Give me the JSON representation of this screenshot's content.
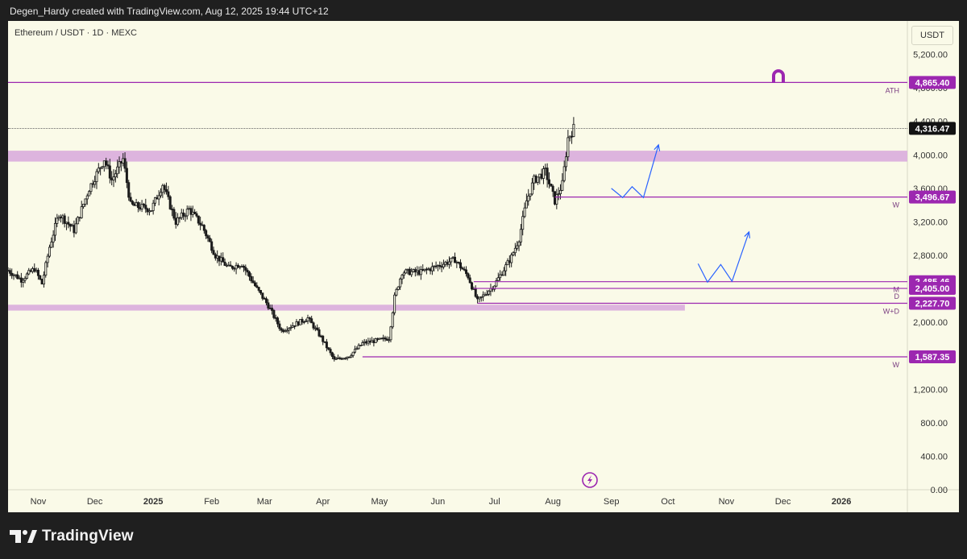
{
  "header": {
    "creator": "Degen_Hardy created with TradingView.com, Aug 12, 2025 19:44 UTC+12"
  },
  "chart_header": {
    "symbol": "Ethereum / USDT · 1D · MEXC",
    "currency": "USDT"
  },
  "footer": {
    "brand": "TradingView"
  },
  "colors": {
    "background": "#fafae8",
    "candle": "#1a1a1a",
    "level_line": "#9c27b0",
    "level_label_bg": "#9c27b0",
    "zone": "#ddb4de",
    "projection": "#2962ff",
    "price_label_bg": "#131313"
  },
  "icons": [
    "magnet-icon",
    "lightning-icon"
  ],
  "chart_data": {
    "type": "candlestick",
    "y_scale": "linear",
    "y_range": [
      0,
      5600
    ],
    "x_range": [
      "2024-10-16",
      "2026-02-05"
    ],
    "y_ticks": [
      "0.00",
      "400.00",
      "800.00",
      "1,200.00",
      "2,000.00",
      "2,400.00",
      "2,800.00",
      "3,200.00",
      "3,600.00",
      "4,000.00",
      "4,400.00",
      "4,800.00",
      "5,200.00"
    ],
    "x_ticks": [
      {
        "label": "Nov",
        "date": "2024-11-01"
      },
      {
        "label": "Dec",
        "date": "2024-12-01"
      },
      {
        "label": "2025",
        "date": "2025-01-01",
        "bold": true
      },
      {
        "label": "Feb",
        "date": "2025-02-01"
      },
      {
        "label": "Mar",
        "date": "2025-03-01"
      },
      {
        "label": "Apr",
        "date": "2025-04-01"
      },
      {
        "label": "May",
        "date": "2025-05-01"
      },
      {
        "label": "Jun",
        "date": "2025-06-01"
      },
      {
        "label": "Jul",
        "date": "2025-07-01"
      },
      {
        "label": "Aug",
        "date": "2025-08-01"
      },
      {
        "label": "Sep",
        "date": "2025-09-01"
      },
      {
        "label": "Oct",
        "date": "2025-10-01"
      },
      {
        "label": "Nov",
        "date": "2025-11-01"
      },
      {
        "label": "Dec",
        "date": "2025-12-01"
      },
      {
        "label": "2026",
        "date": "2026-01-01",
        "bold": true
      }
    ],
    "price_keypoints": [
      [
        "2024-10-16",
        2620
      ],
      [
        "2024-10-23",
        2510
      ],
      [
        "2024-10-30",
        2640
      ],
      [
        "2024-11-03",
        2460
      ],
      [
        "2024-11-07",
        2900
      ],
      [
        "2024-11-12",
        3300
      ],
      [
        "2024-11-20",
        3100
      ],
      [
        "2024-11-28",
        3600
      ],
      [
        "2024-12-06",
        3950
      ],
      [
        "2024-12-10",
        3700
      ],
      [
        "2024-12-16",
        3950
      ],
      [
        "2024-12-20",
        3400
      ],
      [
        "2024-12-31",
        3350
      ],
      [
        "2025-01-06",
        3650
      ],
      [
        "2025-01-13",
        3200
      ],
      [
        "2025-01-20",
        3350
      ],
      [
        "2025-01-27",
        3150
      ],
      [
        "2025-02-03",
        2800
      ],
      [
        "2025-02-10",
        2650
      ],
      [
        "2025-02-17",
        2700
      ],
      [
        "2025-02-25",
        2400
      ],
      [
        "2025-03-03",
        2200
      ],
      [
        "2025-03-10",
        1900
      ],
      [
        "2025-03-24",
        2050
      ],
      [
        "2025-03-31",
        1820
      ],
      [
        "2025-04-07",
        1550
      ],
      [
        "2025-04-15",
        1600
      ],
      [
        "2025-04-22",
        1750
      ],
      [
        "2025-05-06",
        1810
      ],
      [
        "2025-05-09",
        2300
      ],
      [
        "2025-05-13",
        2600
      ],
      [
        "2025-05-23",
        2600
      ],
      [
        "2025-06-10",
        2750
      ],
      [
        "2025-06-17",
        2550
      ],
      [
        "2025-06-22",
        2250
      ],
      [
        "2025-07-01",
        2450
      ],
      [
        "2025-07-10",
        2780
      ],
      [
        "2025-07-14",
        3000
      ],
      [
        "2025-07-18",
        3450
      ],
      [
        "2025-07-22",
        3700
      ],
      [
        "2025-07-28",
        3800
      ],
      [
        "2025-08-02",
        3450
      ],
      [
        "2025-08-06",
        3650
      ],
      [
        "2025-08-09",
        4200
      ],
      [
        "2025-08-12",
        4316
      ]
    ],
    "horizontal_levels": [
      {
        "price": 4865.4,
        "label": "4,865.40",
        "tag": "ATH",
        "from": "2024-10-16"
      },
      {
        "price": 3496.67,
        "label": "3,496.67",
        "tag": "W",
        "from": "2025-08-02"
      },
      {
        "price": 2485.46,
        "label": "2,485.46",
        "tag": "M",
        "from": "2025-06-20"
      },
      {
        "price": 2405.0,
        "label": "2,405.00",
        "tag": "D",
        "from": "2025-06-20"
      },
      {
        "price": 2227.7,
        "label": "2,227.70",
        "tag": "W+D",
        "from": "2025-06-22"
      },
      {
        "price": 1587.35,
        "label": "1,587.35",
        "tag": "W",
        "from": "2025-04-22"
      }
    ],
    "last_price": {
      "price": 4316.47,
      "label": "4,316.47"
    },
    "zones": [
      {
        "from_price": 3920,
        "to_price": 4050,
        "from": "2024-10-16",
        "to": "2026-02-05"
      },
      {
        "from_price": 2140,
        "to_price": 2210,
        "from": "2024-10-16",
        "to": "2025-10-10"
      }
    ],
    "projections": [
      [
        [
          "2025-09-01",
          3600
        ],
        [
          "2025-09-07",
          3490
        ],
        [
          "2025-09-12",
          3620
        ],
        [
          "2025-09-18",
          3490
        ],
        [
          "2025-09-26",
          4120
        ]
      ],
      [
        [
          "2025-10-17",
          2700
        ],
        [
          "2025-10-22",
          2480
        ],
        [
          "2025-10-29",
          2690
        ],
        [
          "2025-11-04",
          2490
        ],
        [
          "2025-11-13",
          3080
        ]
      ]
    ]
  }
}
